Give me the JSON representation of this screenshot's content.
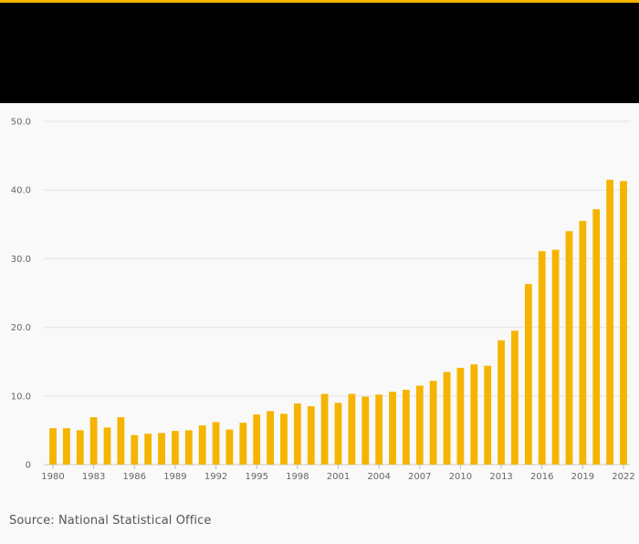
{
  "source": "Source: National Statistical Office",
  "colors": {
    "bar": "#f5b400",
    "accent": "#f5b400",
    "header": "#000000"
  },
  "chart_data": {
    "type": "bar",
    "title": "",
    "xlabel": "",
    "ylabel": "",
    "ylim": [
      0,
      50
    ],
    "yticks": [
      "0",
      "10.0",
      "20.0",
      "30.0",
      "40.0",
      "50.0"
    ],
    "ytick_values": [
      0,
      10,
      20,
      30,
      40,
      50
    ],
    "xtick_labels": [
      "1980",
      "1983",
      "1986",
      "1989",
      "1992",
      "1995",
      "1998",
      "2001",
      "2004",
      "2007",
      "2010",
      "2013",
      "2016",
      "2019",
      "2022"
    ],
    "grid": true,
    "categories": [
      "1980",
      "1981",
      "1982",
      "1983",
      "1984",
      "1985",
      "1986",
      "1987",
      "1988",
      "1989",
      "1990",
      "1991",
      "1992",
      "1993",
      "1994",
      "1995",
      "1996",
      "1997",
      "1998",
      "1999",
      "2000",
      "2001",
      "2002",
      "2003",
      "2004",
      "2005",
      "2006",
      "2007",
      "2008",
      "2009",
      "2010",
      "2011",
      "2012",
      "2013",
      "2014",
      "2015",
      "2016",
      "2017",
      "2018",
      "2019",
      "2020",
      "2021",
      "2022"
    ],
    "values": [
      5.3,
      5.3,
      5.0,
      6.9,
      5.4,
      6.9,
      4.3,
      4.5,
      4.6,
      4.9,
      5.0,
      5.7,
      6.2,
      5.1,
      6.1,
      7.3,
      7.8,
      7.4,
      8.9,
      8.5,
      10.3,
      9.0,
      10.3,
      9.9,
      10.2,
      10.6,
      10.9,
      11.5,
      12.2,
      13.5,
      14.1,
      14.6,
      14.4,
      18.1,
      19.5,
      26.3,
      31.1,
      31.3,
      34.0,
      35.5,
      37.2,
      41.5,
      41.3
    ]
  }
}
